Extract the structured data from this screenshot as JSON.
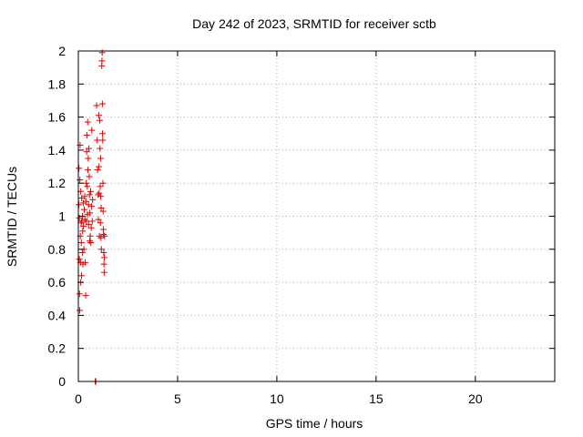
{
  "chart_data": {
    "type": "scatter",
    "title": "Day 242 of 2023, SRMTID for receiver sctb",
    "xlabel": "GPS time / hours",
    "ylabel": "SRMTID / TECUs",
    "xlim": [
      0,
      24
    ],
    "ylim": [
      0,
      2
    ],
    "x_ticks": [
      0,
      5,
      10,
      15,
      20
    ],
    "x_tick_labels": [
      "0",
      "5",
      "10",
      "15",
      "20"
    ],
    "y_ticks": [
      0,
      0.2,
      0.4,
      0.6,
      0.8,
      1,
      1.2,
      1.4,
      1.6,
      1.8,
      2
    ],
    "y_tick_labels": [
      "0",
      "0.2",
      "0.4",
      "0.6",
      "0.8",
      "1",
      "1.2",
      "1.4",
      "1.6",
      "1.8",
      "2"
    ],
    "grid": true,
    "marker": "+",
    "color": "#dd0000",
    "series": [
      {
        "name": "SRMTID",
        "points": [
          [
            0.03,
            1.29
          ],
          [
            0.03,
            1.07
          ],
          [
            0.05,
            0.99
          ],
          [
            0.05,
            0.74
          ],
          [
            0.06,
            0.53
          ],
          [
            0.07,
            0.43
          ],
          [
            0.08,
            1.22
          ],
          [
            0.09,
            1.43
          ],
          [
            0.1,
            0.88
          ],
          [
            0.11,
            0.72
          ],
          [
            0.12,
            0.6
          ],
          [
            0.12,
            1.15
          ],
          [
            0.14,
            0.96
          ],
          [
            0.15,
            0.84
          ],
          [
            0.16,
            0.64
          ],
          [
            0.17,
            1.11
          ],
          [
            0.18,
            0.97
          ],
          [
            0.2,
            0.78
          ],
          [
            0.21,
            1.0
          ],
          [
            0.22,
            0.91
          ],
          [
            0.23,
            0.71
          ],
          [
            0.25,
            1.08
          ],
          [
            0.26,
            0.94
          ],
          [
            0.28,
            0.8
          ],
          [
            0.3,
            1.04
          ],
          [
            0.32,
            1.12
          ],
          [
            0.33,
            0.98
          ],
          [
            0.35,
            0.72
          ],
          [
            0.37,
            0.52
          ],
          [
            0.38,
            1.09
          ],
          [
            0.4,
            1.2
          ],
          [
            0.41,
            0.97
          ],
          [
            0.42,
            1.39
          ],
          [
            0.43,
            1.49
          ],
          [
            0.45,
            1.18
          ],
          [
            0.46,
            1.01
          ],
          [
            0.47,
            1.57
          ],
          [
            0.48,
            1.28
          ],
          [
            0.5,
            1.35
          ],
          [
            0.51,
            1.07
          ],
          [
            0.52,
            0.95
          ],
          [
            0.53,
            1.41
          ],
          [
            0.55,
            1.24
          ],
          [
            0.56,
            1.13
          ],
          [
            0.57,
            0.85
          ],
          [
            0.58,
            1.02
          ],
          [
            0.6,
            0.88
          ],
          [
            0.62,
            1.15
          ],
          [
            0.63,
            0.84
          ],
          [
            0.65,
            0.93
          ],
          [
            0.67,
            1.06
          ],
          [
            0.68,
            1.52
          ],
          [
            0.7,
            0.97
          ],
          [
            0.72,
            1.1
          ],
          [
            0.85,
            0.0
          ],
          [
            0.88,
            0.0
          ],
          [
            0.92,
            1.67
          ],
          [
            0.95,
            1.46
          ],
          [
            0.97,
            1.28
          ],
          [
            1.0,
            1.13
          ],
          [
            1.01,
            0.98
          ],
          [
            1.03,
            1.61
          ],
          [
            1.04,
            1.3
          ],
          [
            1.05,
            1.14
          ],
          [
            1.06,
            0.88
          ],
          [
            1.08,
            1.58
          ],
          [
            1.09,
            1.41
          ],
          [
            1.1,
            1.18
          ],
          [
            1.11,
            0.96
          ],
          [
            1.12,
            1.35
          ],
          [
            1.13,
            1.12
          ],
          [
            1.14,
            0.87
          ],
          [
            1.15,
            1.05
          ],
          [
            1.16,
            0.8
          ],
          [
            1.18,
            1.91
          ],
          [
            1.19,
            1.94
          ],
          [
            1.2,
            1.99
          ],
          [
            1.21,
            1.68
          ],
          [
            1.22,
            1.5
          ],
          [
            1.23,
            1.46
          ],
          [
            1.24,
            1.2
          ],
          [
            1.25,
            1.03
          ],
          [
            1.26,
            0.92
          ],
          [
            1.27,
            0.89
          ],
          [
            1.28,
            0.78
          ],
          [
            1.29,
            0.71
          ],
          [
            1.3,
            0.66
          ],
          [
            1.31,
            0.75
          ],
          [
            1.32,
            0.88
          ]
        ]
      }
    ]
  }
}
